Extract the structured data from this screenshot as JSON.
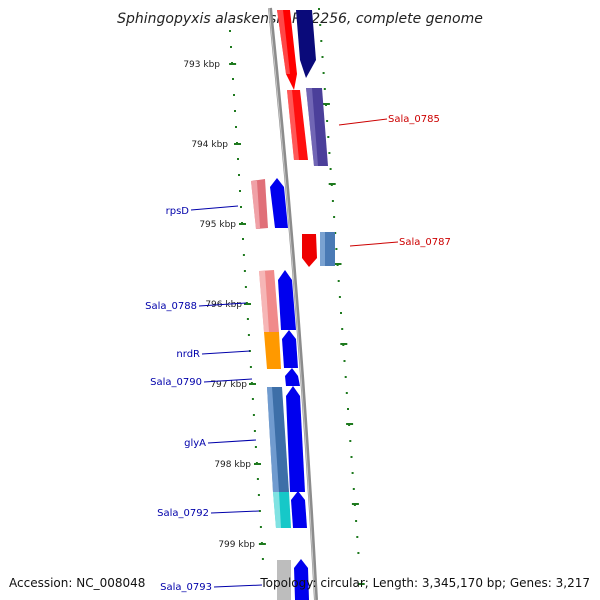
{
  "title": "Sphingopyxis alaskensis RB2256, complete genome",
  "footer": {
    "accession": "Accession: NC_008048",
    "topology": "Topology: circular; Length: 3,345,170 bp; Genes: 3,217"
  },
  "colors": {
    "backbone": "#8c8c8c",
    "tick": "#1e7a1e",
    "label_forward": "#cc0000",
    "label_reverse": "#0000aa"
  },
  "ticks": [
    "793 kbp",
    "794 kbp",
    "795 kbp",
    "796 kbp",
    "797 kbp",
    "798 kbp",
    "799 kbp"
  ],
  "gene_labels": [
    {
      "name": "Sala_0785",
      "color": "#cc0000"
    },
    {
      "name": "Sala_0787",
      "color": "#cc0000"
    },
    {
      "name": "rpsD",
      "color": "#0000aa"
    },
    {
      "name": "Sala_0788",
      "color": "#0000aa"
    },
    {
      "name": "nrdR",
      "color": "#0000aa"
    },
    {
      "name": "Sala_0790",
      "color": "#0000aa"
    },
    {
      "name": "glyA",
      "color": "#0000aa"
    },
    {
      "name": "Sala_0792",
      "color": "#0000aa"
    },
    {
      "name": "Sala_0793",
      "color": "#0000aa"
    }
  ]
}
